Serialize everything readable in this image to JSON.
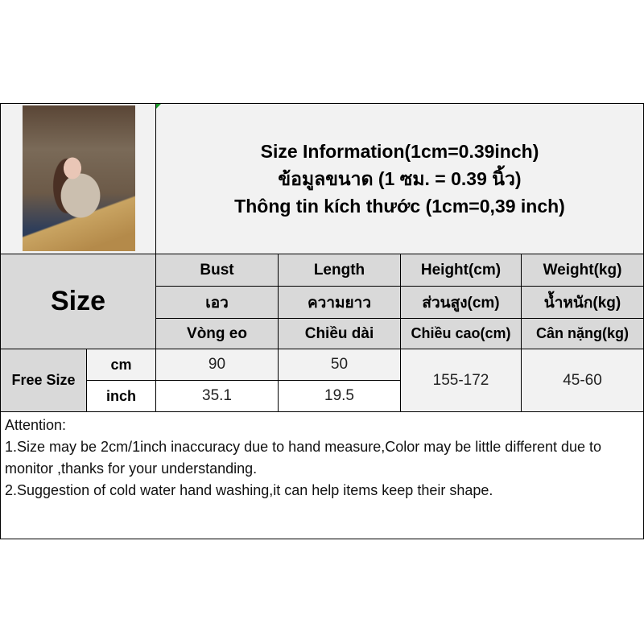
{
  "title": {
    "line1": "Size Information(1cm=0.39inch)",
    "line2": "ข้อมูลขนาด (1 ซม. = 0.39 นิ้ว)",
    "line3": "Thông tin kích thước (1cm=0,39 inch)"
  },
  "size_header": "Size",
  "columns": [
    {
      "en": "Bust",
      "th": "เอว",
      "vi": "Vòng eo"
    },
    {
      "en": "Length",
      "th": "ความยาว",
      "vi": "Chiều dài"
    },
    {
      "en": "Height(cm)",
      "th": "ส่วนสูง(cm)",
      "vi": "Chiều cao(cm)"
    },
    {
      "en": "Weight(kg)",
      "th": "น้ำหนัก(kg)",
      "vi": "Cân nặng(kg)"
    }
  ],
  "rows": {
    "size_name": "Free Size",
    "cm": {
      "unit": "cm",
      "bust": "90",
      "length": "50"
    },
    "inch": {
      "unit": "inch",
      "bust": "35.1",
      "length": "19.5"
    },
    "height": "155-172",
    "weight": "45-60"
  },
  "attention": {
    "heading": "Attention:",
    "note1": "1.Size may be 2cm/1inch inaccuracy due to hand measure,Color may be little different due to monitor ,thanks for your understanding.",
    "note2": "2.Suggestion of cold water hand washing,it can help items keep their shape."
  },
  "colors": {
    "header_bg": "#d9d9d9",
    "light_bg": "#f2f2f2",
    "border": "#000000"
  }
}
